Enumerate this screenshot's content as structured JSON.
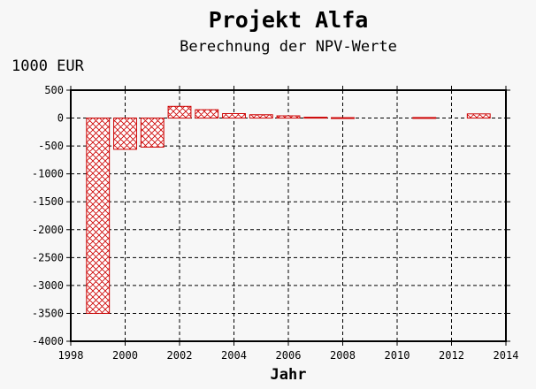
{
  "chart_data": {
    "type": "bar",
    "title": "Projekt Alfa",
    "subtitle": "Berechnung der NPV-Werte",
    "ylabel": "1000 EUR",
    "xlabel": "Jahr",
    "x": [
      1999,
      2000,
      2001,
      2002,
      2003,
      2004,
      2005,
      2006,
      2007,
      2008,
      2009,
      2010,
      2011,
      2012,
      2013
    ],
    "values": [
      -3500,
      -560,
      -520,
      210,
      150,
      80,
      60,
      40,
      15,
      8,
      0,
      0,
      10,
      0,
      75
    ],
    "xlim": [
      1998,
      2014
    ],
    "ylim": [
      -4000,
      500
    ],
    "xticks": [
      "1998",
      "2000",
      "2002",
      "2004",
      "2006",
      "2008",
      "2010",
      "2012",
      "2014"
    ],
    "yticks": [
      "500",
      "0",
      "-500",
      "-1000",
      "-1500",
      "-2000",
      "-2500",
      "-3000",
      "-3500",
      "-4000"
    ],
    "grid": true,
    "bar_color": "#cc0000",
    "bar_fill": "crosshatch"
  }
}
